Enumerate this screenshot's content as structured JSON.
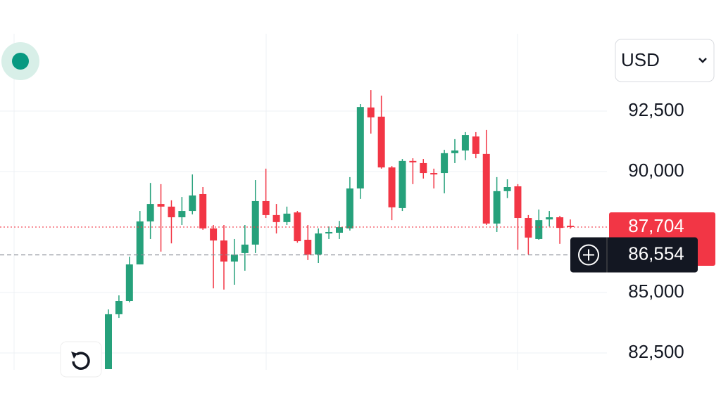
{
  "chart_data": {
    "type": "candlestick",
    "currency": "USD",
    "ylim": [
      81830,
      95640
    ],
    "yticks": [
      {
        "value": 82500,
        "label": "82,500"
      },
      {
        "value": 85000,
        "label": "85,000"
      },
      {
        "value": 90000,
        "label": "90,000"
      },
      {
        "value": 92500,
        "label": "92,500"
      }
    ],
    "grid": true,
    "up_color": "#26a17b",
    "down_color": "#f23645",
    "open": [
      81830,
      84100,
      84650,
      86160,
      87940,
      88660,
      88550,
      88110,
      88370,
      89070,
      87650,
      87150,
      86280,
      86630,
      86980,
      88780,
      88200,
      87910,
      88310,
      87180,
      86570,
      87440,
      87470,
      87650,
      89300,
      92650,
      92270,
      90170,
      88490,
      90440,
      90350,
      89940,
      89940,
      90760,
      90870,
      91450,
      90730,
      87850,
      89190,
      89390,
      88080,
      87210,
      88020,
      88110,
      87760
    ],
    "high": [
      84300,
      84880,
      86480,
      88370,
      89530,
      89480,
      88810,
      88950,
      89880,
      89360,
      87790,
      87790,
      87210,
      87790,
      89650,
      90120,
      88660,
      88550,
      88370,
      87790,
      87650,
      87730,
      87960,
      89770,
      92790,
      93370,
      93140,
      90230,
      90520,
      90550,
      90520,
      90120,
      90900,
      91340,
      91630,
      91630,
      91720,
      89770,
      89680,
      89480,
      88200,
      88430,
      88370,
      88170,
      88020
    ],
    "low": [
      81830,
      83950,
      84590,
      86160,
      87210,
      86690,
      87030,
      87790,
      88230,
      87590,
      85170,
      85120,
      85320,
      85900,
      86630,
      88080,
      87440,
      87790,
      87060,
      86340,
      86220,
      87210,
      87210,
      87560,
      88870,
      91570,
      90120,
      87990,
      88370,
      89480,
      89710,
      89300,
      89100,
      90350,
      90470,
      90550,
      87790,
      87500,
      88900,
      86770,
      86570,
      87180,
      87730,
      87010,
      87640
    ],
    "close": [
      84100,
      84650,
      86160,
      87940,
      88660,
      88550,
      88110,
      88370,
      89010,
      87650,
      87150,
      86280,
      86570,
      86980,
      88780,
      88200,
      87910,
      88260,
      87120,
      86570,
      87440,
      87500,
      87700,
      89300,
      92670,
      92240,
      90170,
      88520,
      90440,
      90380,
      89940,
      89880,
      90760,
      90870,
      91510,
      90730,
      87850,
      89190,
      89360,
      88080,
      87270,
      87990,
      88110,
      87670,
      87704
    ],
    "last_price": {
      "value": 87704,
      "label": "87,704"
    },
    "crosshair_price": {
      "value": 86554,
      "label": "86,554"
    }
  }
}
